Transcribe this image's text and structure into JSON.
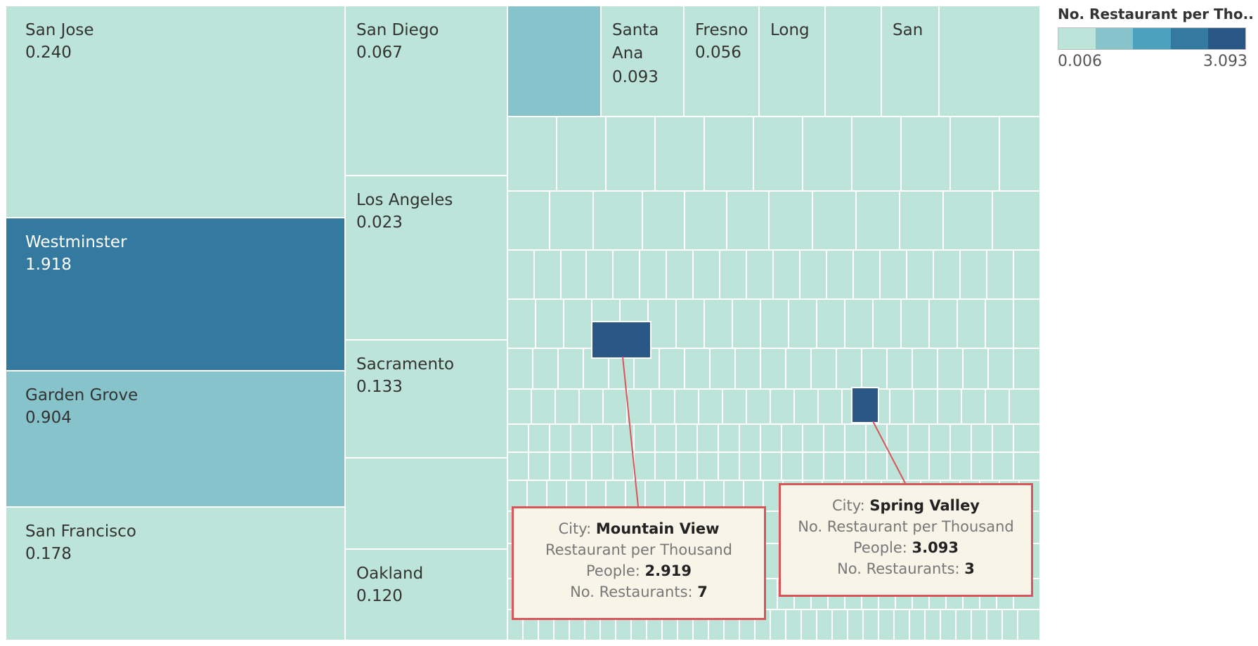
{
  "chart_data": {
    "type": "treemap",
    "metric": "No. Restaurant per Thousand People",
    "legend": {
      "title": "No. Restaurant per Tho..",
      "min_label": "0.006",
      "max_label": "3.093",
      "min": 0.006,
      "max": 3.093,
      "colors": [
        "#bde4d9",
        "#86c3ca",
        "#4aa2be",
        "#3479a0",
        "#2a5785"
      ]
    },
    "labeled_cities": [
      {
        "name": "San Jose",
        "value": "0.240"
      },
      {
        "name": "Westminster",
        "value": "1.918"
      },
      {
        "name": "Garden Grove",
        "value": "0.904"
      },
      {
        "name": "San Francisco",
        "value": "0.178"
      },
      {
        "name": "San Diego",
        "value": "0.067"
      },
      {
        "name": "Los Angeles",
        "value": "0.023"
      },
      {
        "name": "Sacramento",
        "value": "0.133"
      },
      {
        "name": "Oakland",
        "value": "0.120"
      },
      {
        "name": "Santa Ana",
        "value": "0.093"
      },
      {
        "name": "Fresno",
        "value": "0.056"
      },
      {
        "name": "Long",
        "value": ""
      },
      {
        "name": "San",
        "value": ""
      }
    ],
    "tooltips": [
      {
        "city_label": "City: ",
        "city": "Mountain View",
        "metric_line1": "Restaurant per Thousand",
        "metric_line2_label": "People: ",
        "metric_value": "2.919",
        "count_label": "No. Restaurants: ",
        "count": "7"
      },
      {
        "city_label": "City: ",
        "city": "Spring Valley",
        "metric_line1": "No. Restaurant per Thousand",
        "metric_line2_label": "People: ",
        "metric_value": "3.093",
        "count_label": "No. Restaurants: ",
        "count": "3"
      }
    ]
  }
}
